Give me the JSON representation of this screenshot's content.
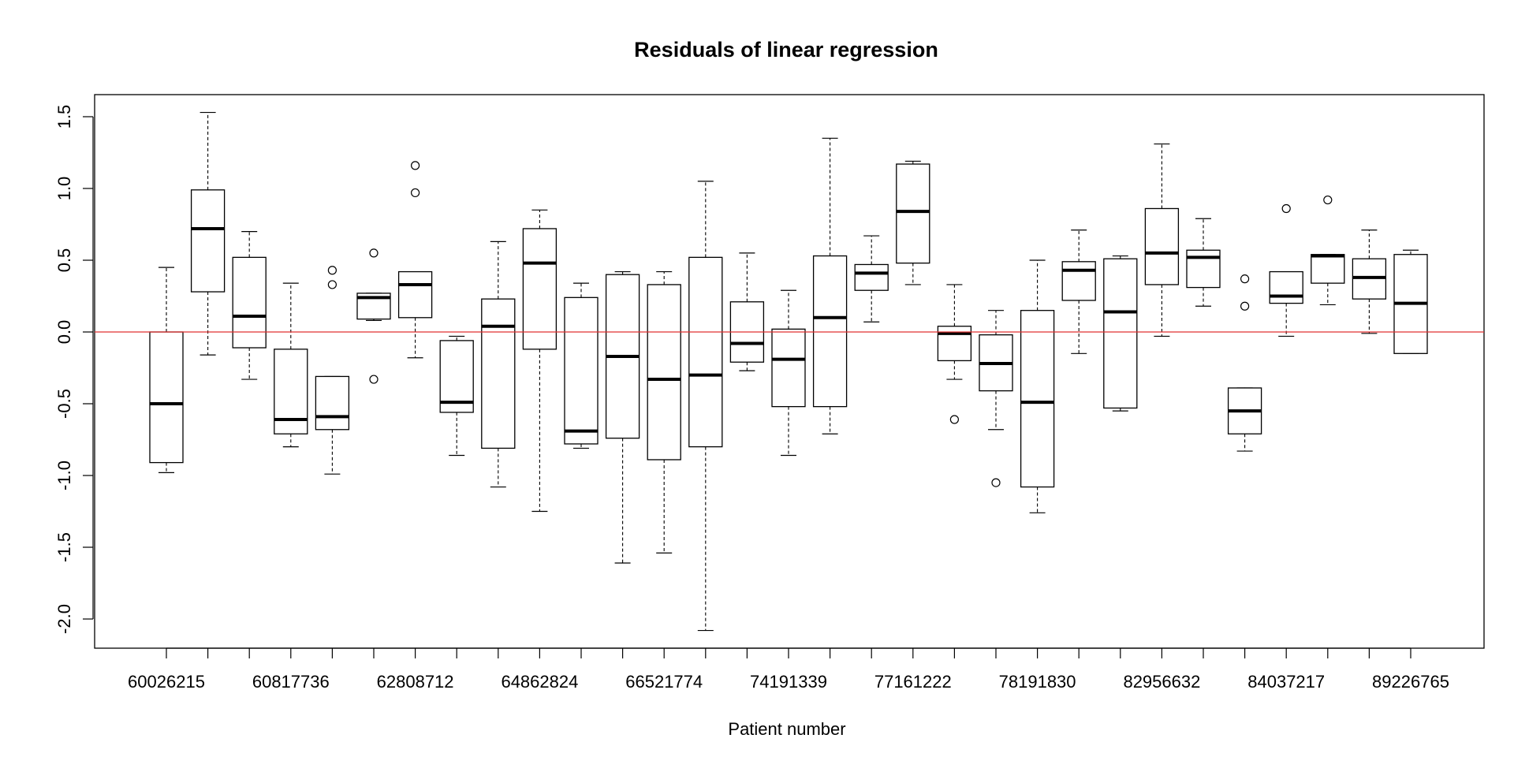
{
  "chart_data": {
    "type": "boxplot",
    "title": "Residuals of linear regression",
    "xlabel": "Patient number",
    "ylabel": "",
    "ylim": [
      -2.2,
      1.65
    ],
    "yticks": [
      -2.0,
      -1.5,
      -1.0,
      -0.5,
      0.0,
      0.5,
      1.0,
      1.5
    ],
    "ytick_labels": [
      "-2.0",
      "-1.5",
      "-1.0",
      "-0.5",
      "0.0",
      "0.5",
      "1.0",
      "1.5"
    ],
    "xtick_labels": [
      {
        "index": 0,
        "label": "60026215"
      },
      {
        "index": 3,
        "label": "60817736"
      },
      {
        "index": 6,
        "label": "62808712"
      },
      {
        "index": 9,
        "label": "64862824"
      },
      {
        "index": 12,
        "label": "66521774"
      },
      {
        "index": 15,
        "label": "74191339"
      },
      {
        "index": 18,
        "label": "77161222"
      },
      {
        "index": 21,
        "label": "78191830"
      },
      {
        "index": 24,
        "label": "82956632"
      },
      {
        "index": 27,
        "label": "84037217"
      },
      {
        "index": 30,
        "label": "89226765"
      }
    ],
    "reference_line": {
      "y": 0.0,
      "color": "#e03030"
    },
    "colors": {
      "box": "#000000",
      "median": "#000000",
      "reference": "#e03030"
    },
    "boxes": [
      {
        "whisker_low": -0.98,
        "q1": -0.91,
        "median": -0.5,
        "q3": 0.0,
        "whisker_high": 0.45,
        "outliers": []
      },
      {
        "whisker_low": -0.16,
        "q1": 0.28,
        "median": 0.72,
        "q3": 0.99,
        "whisker_high": 1.53,
        "outliers": []
      },
      {
        "whisker_low": -0.33,
        "q1": -0.11,
        "median": 0.11,
        "q3": 0.52,
        "whisker_high": 0.7,
        "outliers": []
      },
      {
        "whisker_low": -0.8,
        "q1": -0.71,
        "median": -0.61,
        "q3": -0.12,
        "whisker_high": 0.34,
        "outliers": []
      },
      {
        "whisker_low": -0.99,
        "q1": -0.68,
        "median": -0.59,
        "q3": -0.31,
        "whisker_high": -0.31,
        "outliers": [
          0.43,
          0.33
        ]
      },
      {
        "whisker_low": 0.08,
        "q1": 0.09,
        "median": 0.24,
        "q3": 0.27,
        "whisker_high": 0.27,
        "outliers": [
          0.55,
          -0.33
        ]
      },
      {
        "whisker_low": -0.18,
        "q1": 0.1,
        "median": 0.33,
        "q3": 0.42,
        "whisker_high": 0.42,
        "outliers": [
          1.16,
          0.97
        ]
      },
      {
        "whisker_low": -0.86,
        "q1": -0.56,
        "median": -0.49,
        "q3": -0.06,
        "whisker_high": -0.03,
        "outliers": []
      },
      {
        "whisker_low": -1.08,
        "q1": -0.81,
        "median": 0.04,
        "q3": 0.23,
        "whisker_high": 0.63,
        "outliers": []
      },
      {
        "whisker_low": -1.25,
        "q1": -0.12,
        "median": 0.48,
        "q3": 0.72,
        "whisker_high": 0.85,
        "outliers": []
      },
      {
        "whisker_low": -0.81,
        "q1": -0.78,
        "median": -0.69,
        "q3": 0.24,
        "whisker_high": 0.34,
        "outliers": []
      },
      {
        "whisker_low": -1.61,
        "q1": -0.74,
        "median": -0.17,
        "q3": 0.4,
        "whisker_high": 0.42,
        "outliers": []
      },
      {
        "whisker_low": -1.54,
        "q1": -0.89,
        "median": -0.33,
        "q3": 0.33,
        "whisker_high": 0.42,
        "outliers": []
      },
      {
        "whisker_low": -2.08,
        "q1": -0.8,
        "median": -0.3,
        "q3": 0.52,
        "whisker_high": 1.05,
        "outliers": []
      },
      {
        "whisker_low": -0.27,
        "q1": -0.21,
        "median": -0.08,
        "q3": 0.21,
        "whisker_high": 0.55,
        "outliers": []
      },
      {
        "whisker_low": -0.86,
        "q1": -0.52,
        "median": -0.19,
        "q3": 0.02,
        "whisker_high": 0.29,
        "outliers": []
      },
      {
        "whisker_low": -0.71,
        "q1": -0.52,
        "median": 0.1,
        "q3": 0.53,
        "whisker_high": 1.35,
        "outliers": []
      },
      {
        "whisker_low": 0.07,
        "q1": 0.29,
        "median": 0.41,
        "q3": 0.47,
        "whisker_high": 0.67,
        "outliers": []
      },
      {
        "whisker_low": 0.33,
        "q1": 0.48,
        "median": 0.84,
        "q3": 1.17,
        "whisker_high": 1.19,
        "outliers": []
      },
      {
        "whisker_low": -0.33,
        "q1": -0.2,
        "median": -0.01,
        "q3": 0.04,
        "whisker_high": 0.33,
        "outliers": [
          -0.61
        ]
      },
      {
        "whisker_low": -0.68,
        "q1": -0.41,
        "median": -0.22,
        "q3": -0.02,
        "whisker_high": 0.15,
        "outliers": [
          -1.05
        ]
      },
      {
        "whisker_low": -1.26,
        "q1": -1.08,
        "median": -0.49,
        "q3": 0.15,
        "whisker_high": 0.5,
        "outliers": []
      },
      {
        "whisker_low": -0.15,
        "q1": 0.22,
        "median": 0.43,
        "q3": 0.49,
        "whisker_high": 0.71,
        "outliers": []
      },
      {
        "whisker_low": -0.55,
        "q1": -0.53,
        "median": 0.14,
        "q3": 0.51,
        "whisker_high": 0.53,
        "outliers": []
      },
      {
        "whisker_low": -0.03,
        "q1": 0.33,
        "median": 0.55,
        "q3": 0.86,
        "whisker_high": 1.31,
        "outliers": []
      },
      {
        "whisker_low": 0.18,
        "q1": 0.31,
        "median": 0.52,
        "q3": 0.57,
        "whisker_high": 0.79,
        "outliers": []
      },
      {
        "whisker_low": -0.83,
        "q1": -0.71,
        "median": -0.55,
        "q3": -0.39,
        "whisker_high": -0.39,
        "outliers": [
          0.37,
          0.18
        ]
      },
      {
        "whisker_low": -0.03,
        "q1": 0.2,
        "median": 0.25,
        "q3": 0.42,
        "whisker_high": 0.42,
        "outliers": [
          0.86
        ]
      },
      {
        "whisker_low": 0.19,
        "q1": 0.34,
        "median": 0.53,
        "q3": 0.54,
        "whisker_high": 0.54,
        "outliers": [
          0.92
        ]
      },
      {
        "whisker_low": -0.01,
        "q1": 0.23,
        "median": 0.38,
        "q3": 0.51,
        "whisker_high": 0.71,
        "outliers": []
      },
      {
        "whisker_low": -0.15,
        "q1": -0.15,
        "median": 0.2,
        "q3": 0.54,
        "whisker_high": 0.57,
        "outliers": []
      }
    ]
  }
}
